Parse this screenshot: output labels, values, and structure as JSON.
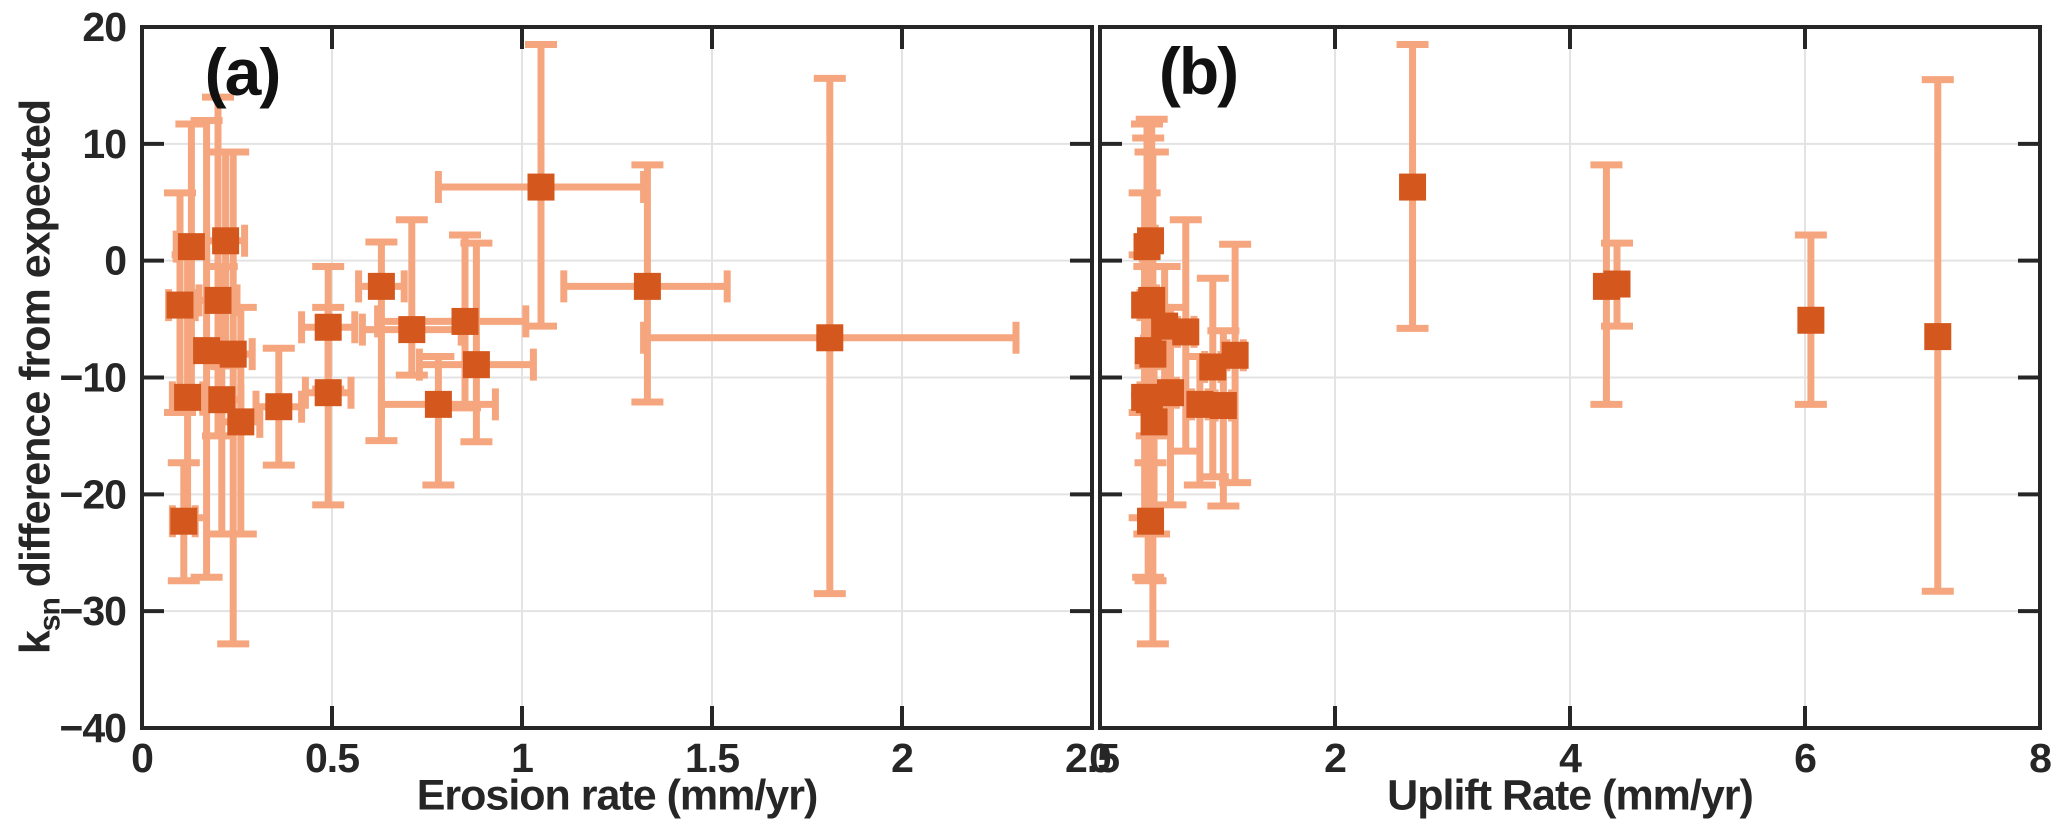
{
  "shared": {
    "ylabel_k": "k",
    "ylabel_sub": "sn",
    "ylabel_rest": " difference from expected",
    "colors": {
      "marker": "#d4581e",
      "error_bar": "#f5a67e",
      "grid": "#e3e3e3",
      "frame": "#262626",
      "text": "#262626"
    }
  },
  "chart_data": [
    {
      "type": "scatter",
      "panel_label": "(a)",
      "xlabel": "Erosion rate (mm/yr)",
      "ylabel": "ksn difference from expected",
      "xlim": [
        0,
        2.5
      ],
      "ylim": [
        -40,
        20
      ],
      "xticks": [
        0,
        0.5,
        1,
        1.5,
        2,
        2.5
      ],
      "xtick_labels": [
        "0",
        "0.5",
        "1",
        "1.5",
        "2",
        "2.5"
      ],
      "yticks": [
        -40,
        -30,
        -20,
        -10,
        0,
        10,
        20
      ],
      "ytick_labels": [
        "−40",
        "−30",
        "−20",
        "−10",
        "0",
        "10",
        "20"
      ],
      "show_ytick_labels": true,
      "grid": true,
      "points": [
        {
          "x": 0.13,
          "y": 1.2,
          "xerr": [
            0.09,
            0.17
          ],
          "yerr": [
            -11.5,
            11.7
          ]
        },
        {
          "x": 0.22,
          "y": 1.7,
          "xerr": [
            0.17,
            0.27
          ],
          "yerr": [
            -9.0,
            9.3
          ]
        },
        {
          "x": 0.1,
          "y": -3.8,
          "xerr": [
            0.07,
            0.14
          ],
          "yerr": [
            -13.0,
            5.8
          ]
        },
        {
          "x": 0.2,
          "y": -3.4,
          "xerr": [
            0.15,
            0.25
          ],
          "yerr": [
            -15.0,
            14.0
          ]
        },
        {
          "x": 0.17,
          "y": -7.7,
          "xerr": [
            0.13,
            0.21
          ],
          "yerr": [
            -27.1,
            12.0
          ]
        },
        {
          "x": 0.24,
          "y": -8.0,
          "xerr": [
            0.19,
            0.29
          ],
          "yerr": [
            -32.8,
            9.3
          ]
        },
        {
          "x": 0.12,
          "y": -11.7,
          "xerr": [
            0.08,
            0.16
          ],
          "yerr": [
            -22.0,
            0.5
          ]
        },
        {
          "x": 0.21,
          "y": -11.9,
          "xerr": [
            0.16,
            0.26
          ],
          "yerr": [
            -23.4,
            -0.5
          ]
        },
        {
          "x": 0.26,
          "y": -13.8,
          "xerr": [
            0.21,
            0.31
          ],
          "yerr": [
            -23.4,
            -4.0
          ]
        },
        {
          "x": 0.36,
          "y": -12.5,
          "xerr": [
            0.3,
            0.42
          ],
          "yerr": [
            -17.5,
            -7.5
          ]
        },
        {
          "x": 0.11,
          "y": -22.3,
          "xerr": [
            0.08,
            0.14
          ],
          "yerr": [
            -27.4,
            -17.3
          ]
        },
        {
          "x": 0.49,
          "y": -5.7,
          "xerr": [
            0.42,
            0.56
          ],
          "yerr": [
            -11.0,
            -0.5
          ]
        },
        {
          "x": 0.49,
          "y": -11.3,
          "xerr": [
            0.43,
            0.55
          ],
          "yerr": [
            -20.9,
            -4.0
          ]
        },
        {
          "x": 0.63,
          "y": -2.2,
          "xerr": [
            0.57,
            0.69
          ],
          "yerr": [
            -15.4,
            1.6
          ]
        },
        {
          "x": 0.71,
          "y": -5.9,
          "xerr": [
            0.58,
            0.84
          ],
          "yerr": [
            -9.8,
            3.5
          ]
        },
        {
          "x": 0.78,
          "y": -12.3,
          "xerr": [
            0.63,
            0.93
          ],
          "yerr": [
            -19.2,
            -8.2
          ]
        },
        {
          "x": 0.85,
          "y": -5.2,
          "xerr": [
            0.62,
            1.01
          ],
          "yerr": [
            -12.6,
            2.2
          ]
        },
        {
          "x": 0.88,
          "y": -8.9,
          "xerr": [
            0.73,
            1.03
          ],
          "yerr": [
            -15.5,
            1.5
          ]
        },
        {
          "x": 1.05,
          "y": 6.3,
          "xerr": [
            0.78,
            1.32
          ],
          "yerr": [
            -5.6,
            18.5
          ]
        },
        {
          "x": 1.33,
          "y": -2.2,
          "xerr": [
            1.11,
            1.54
          ],
          "yerr": [
            -12.1,
            8.2
          ]
        },
        {
          "x": 1.81,
          "y": -6.6,
          "xerr": [
            1.32,
            2.3
          ],
          "yerr": [
            -28.5,
            15.6
          ]
        }
      ]
    },
    {
      "type": "scatter",
      "panel_label": "(b)",
      "xlabel": "Uplift Rate (mm/yr)",
      "ylabel": "ksn difference from expected",
      "xlim": [
        0,
        8
      ],
      "ylim": [
        -40,
        20
      ],
      "xticks": [
        0,
        2,
        4,
        6,
        8
      ],
      "xtick_labels": [
        "0",
        "2",
        "4",
        "6",
        "8"
      ],
      "yticks": [
        -40,
        -30,
        -20,
        -10,
        0,
        10,
        20
      ],
      "ytick_labels": [],
      "show_ytick_labels": false,
      "grid": true,
      "points": [
        {
          "x": 0.4,
          "y": 1.2,
          "xerr": [
            0.36,
            0.44
          ],
          "yerr": [
            -11.5,
            11.7
          ]
        },
        {
          "x": 0.43,
          "y": 1.7,
          "xerr": [
            0.39,
            0.47
          ],
          "yerr": [
            -9.0,
            9.3
          ]
        },
        {
          "x": 0.38,
          "y": -3.8,
          "xerr": [
            0.34,
            0.42
          ],
          "yerr": [
            -13.0,
            5.8
          ]
        },
        {
          "x": 0.44,
          "y": -3.4,
          "xerr": [
            0.4,
            0.48
          ],
          "yerr": [
            -15.0,
            12.1
          ]
        },
        {
          "x": 0.41,
          "y": -7.7,
          "xerr": [
            0.37,
            0.45
          ],
          "yerr": [
            -27.1,
            10.5
          ]
        },
        {
          "x": 0.45,
          "y": -8.0,
          "xerr": [
            0.41,
            0.49
          ],
          "yerr": [
            -32.8,
            9.3
          ]
        },
        {
          "x": 0.38,
          "y": -11.7,
          "xerr": [
            0.34,
            0.42
          ],
          "yerr": [
            -22.0,
            0.5
          ]
        },
        {
          "x": 0.42,
          "y": -11.9,
          "xerr": [
            0.38,
            0.46
          ],
          "yerr": [
            -23.4,
            -0.5
          ]
        },
        {
          "x": 0.46,
          "y": -13.8,
          "xerr": [
            0.42,
            0.5
          ],
          "yerr": [
            -23.4,
            -4.0
          ]
        },
        {
          "x": 0.43,
          "y": -22.3,
          "xerr": [
            0.39,
            0.47
          ],
          "yerr": [
            -27.4,
            -17.3
          ]
        },
        {
          "x": 0.55,
          "y": -5.6,
          "xerr": [
            0.5,
            0.6
          ],
          "yerr": [
            -11.0,
            -0.5
          ]
        },
        {
          "x": 0.6,
          "y": -11.3,
          "xerr": [
            0.55,
            0.65
          ],
          "yerr": [
            -20.9,
            -4.0
          ]
        },
        {
          "x": 0.73,
          "y": -6.1,
          "xerr": [
            0.66,
            0.8
          ],
          "yerr": [
            -16.3,
            3.5
          ]
        },
        {
          "x": 0.96,
          "y": -9.1,
          "xerr": [
            0.89,
            1.03
          ],
          "yerr": [
            -18.5,
            -1.5
          ]
        },
        {
          "x": 1.15,
          "y": -8.1,
          "xerr": [
            1.08,
            1.22
          ],
          "yerr": [
            -19.0,
            1.4
          ]
        },
        {
          "x": 0.85,
          "y": -12.3,
          "xerr": [
            0.78,
            0.92
          ],
          "yerr": [
            -19.2,
            -8.2
          ]
        },
        {
          "x": 1.05,
          "y": -12.4,
          "xerr": [
            0.98,
            1.12
          ],
          "yerr": [
            -21.0,
            -6.0
          ]
        },
        {
          "x": 2.66,
          "y": 6.3,
          "xerr": [
            2.66,
            2.66
          ],
          "yerr": [
            -5.8,
            18.5
          ]
        },
        {
          "x": 4.31,
          "y": -2.2,
          "xerr": [
            4.31,
            4.31
          ],
          "yerr": [
            -12.3,
            8.2
          ]
        },
        {
          "x": 4.4,
          "y": -2.0,
          "xerr": [
            4.4,
            4.4
          ],
          "yerr": [
            -5.6,
            1.5
          ]
        },
        {
          "x": 6.05,
          "y": -5.1,
          "xerr": [
            6.05,
            6.05
          ],
          "yerr": [
            -12.3,
            2.2
          ]
        },
        {
          "x": 7.13,
          "y": -6.5,
          "xerr": [
            7.13,
            7.13
          ],
          "yerr": [
            -28.3,
            15.5
          ]
        }
      ]
    }
  ]
}
